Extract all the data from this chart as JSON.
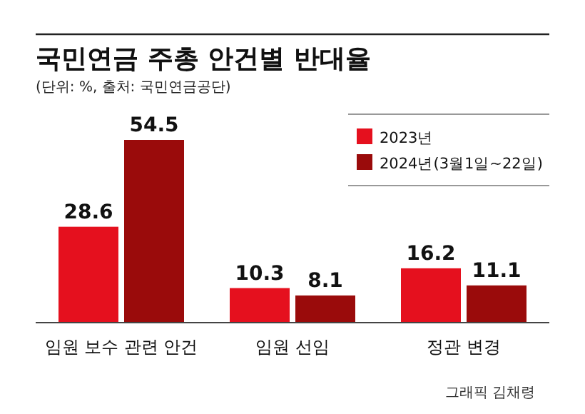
{
  "chart_data": {
    "type": "bar",
    "title": "국민연금 주총 안건별 반대율",
    "subtitle": "(단위: %, 출처: 국민연금공단)",
    "categories": [
      "임원 보수 관련 안건",
      "임원 선임",
      "정관 변경"
    ],
    "series": [
      {
        "name": "2023년",
        "color": "#e5101e",
        "values": [
          28.6,
          10.3,
          16.2
        ]
      },
      {
        "name": "2024년(3월1일~22일)",
        "color": "#9a0b0b",
        "values": [
          54.5,
          8.1,
          11.1
        ]
      }
    ],
    "data_labels": true,
    "legend": "top right",
    "annotations": [
      "그래픽 김채령"
    ]
  }
}
